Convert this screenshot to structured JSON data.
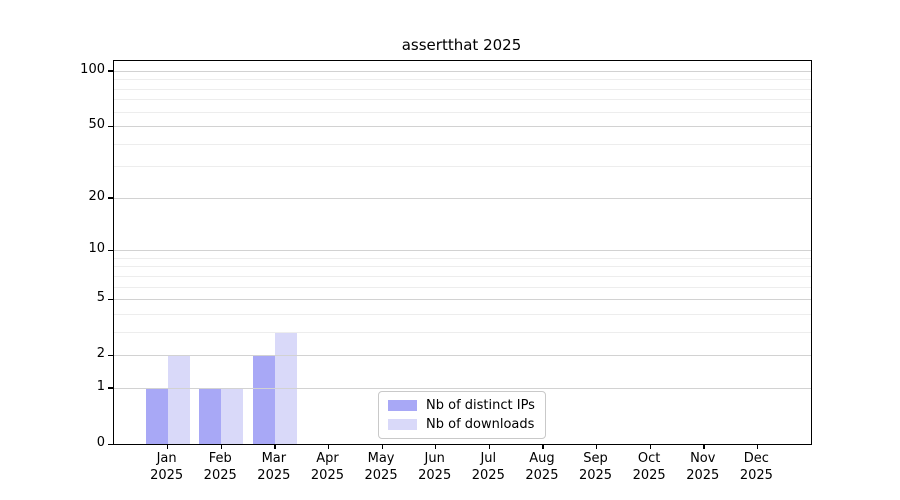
{
  "chart_data": {
    "type": "bar",
    "title": "assertthat 2025",
    "categories": [
      {
        "label": "Jan",
        "sublabel": "2025"
      },
      {
        "label": "Feb",
        "sublabel": "2025"
      },
      {
        "label": "Mar",
        "sublabel": "2025"
      },
      {
        "label": "Apr",
        "sublabel": "2025"
      },
      {
        "label": "May",
        "sublabel": "2025"
      },
      {
        "label": "Jun",
        "sublabel": "2025"
      },
      {
        "label": "Jul",
        "sublabel": "2025"
      },
      {
        "label": "Aug",
        "sublabel": "2025"
      },
      {
        "label": "Sep",
        "sublabel": "2025"
      },
      {
        "label": "Oct",
        "sublabel": "2025"
      },
      {
        "label": "Nov",
        "sublabel": "2025"
      },
      {
        "label": "Dec",
        "sublabel": "2025"
      }
    ],
    "series": [
      {
        "name": "Nb of distinct IPs",
        "color": "#a8a8f6",
        "values": [
          1,
          1,
          2,
          0,
          0,
          0,
          0,
          0,
          0,
          0,
          0,
          0
        ]
      },
      {
        "name": "Nb of downloads",
        "color": "#d9d9f9",
        "values": [
          2,
          1,
          3,
          0,
          0,
          0,
          0,
          0,
          0,
          0,
          0,
          0
        ]
      }
    ],
    "y_axis": {
      "scale": "log1p",
      "ticks": [
        100,
        50,
        20,
        10,
        5,
        2,
        1,
        0
      ],
      "minor_gridlines": [
        3,
        4,
        6,
        7,
        8,
        9,
        30,
        40,
        60,
        70,
        80,
        90
      ],
      "ymax_display": 113
    },
    "grid": true,
    "legend_position": "lower center"
  }
}
